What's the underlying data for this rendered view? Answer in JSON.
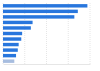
{
  "chart_data": {
    "type": "bar",
    "orientation": "horizontal",
    "categories": [
      null,
      null,
      null,
      null,
      null,
      null,
      null,
      null,
      null,
      null,
      null
    ],
    "values": [
      97,
      86,
      82,
      34,
      32,
      22,
      21,
      18,
      17,
      15,
      13
    ],
    "colors": [
      "#2876dd",
      "#2876dd",
      "#2876dd",
      "#2876dd",
      "#2876dd",
      "#2876dd",
      "#2876dd",
      "#2876dd",
      "#2876dd",
      "#2876dd",
      "#a7bddf"
    ],
    "xlim": [
      0,
      100
    ],
    "xticks": [
      0,
      25,
      50,
      75,
      100
    ],
    "grid": true,
    "tick_labels": false
  }
}
